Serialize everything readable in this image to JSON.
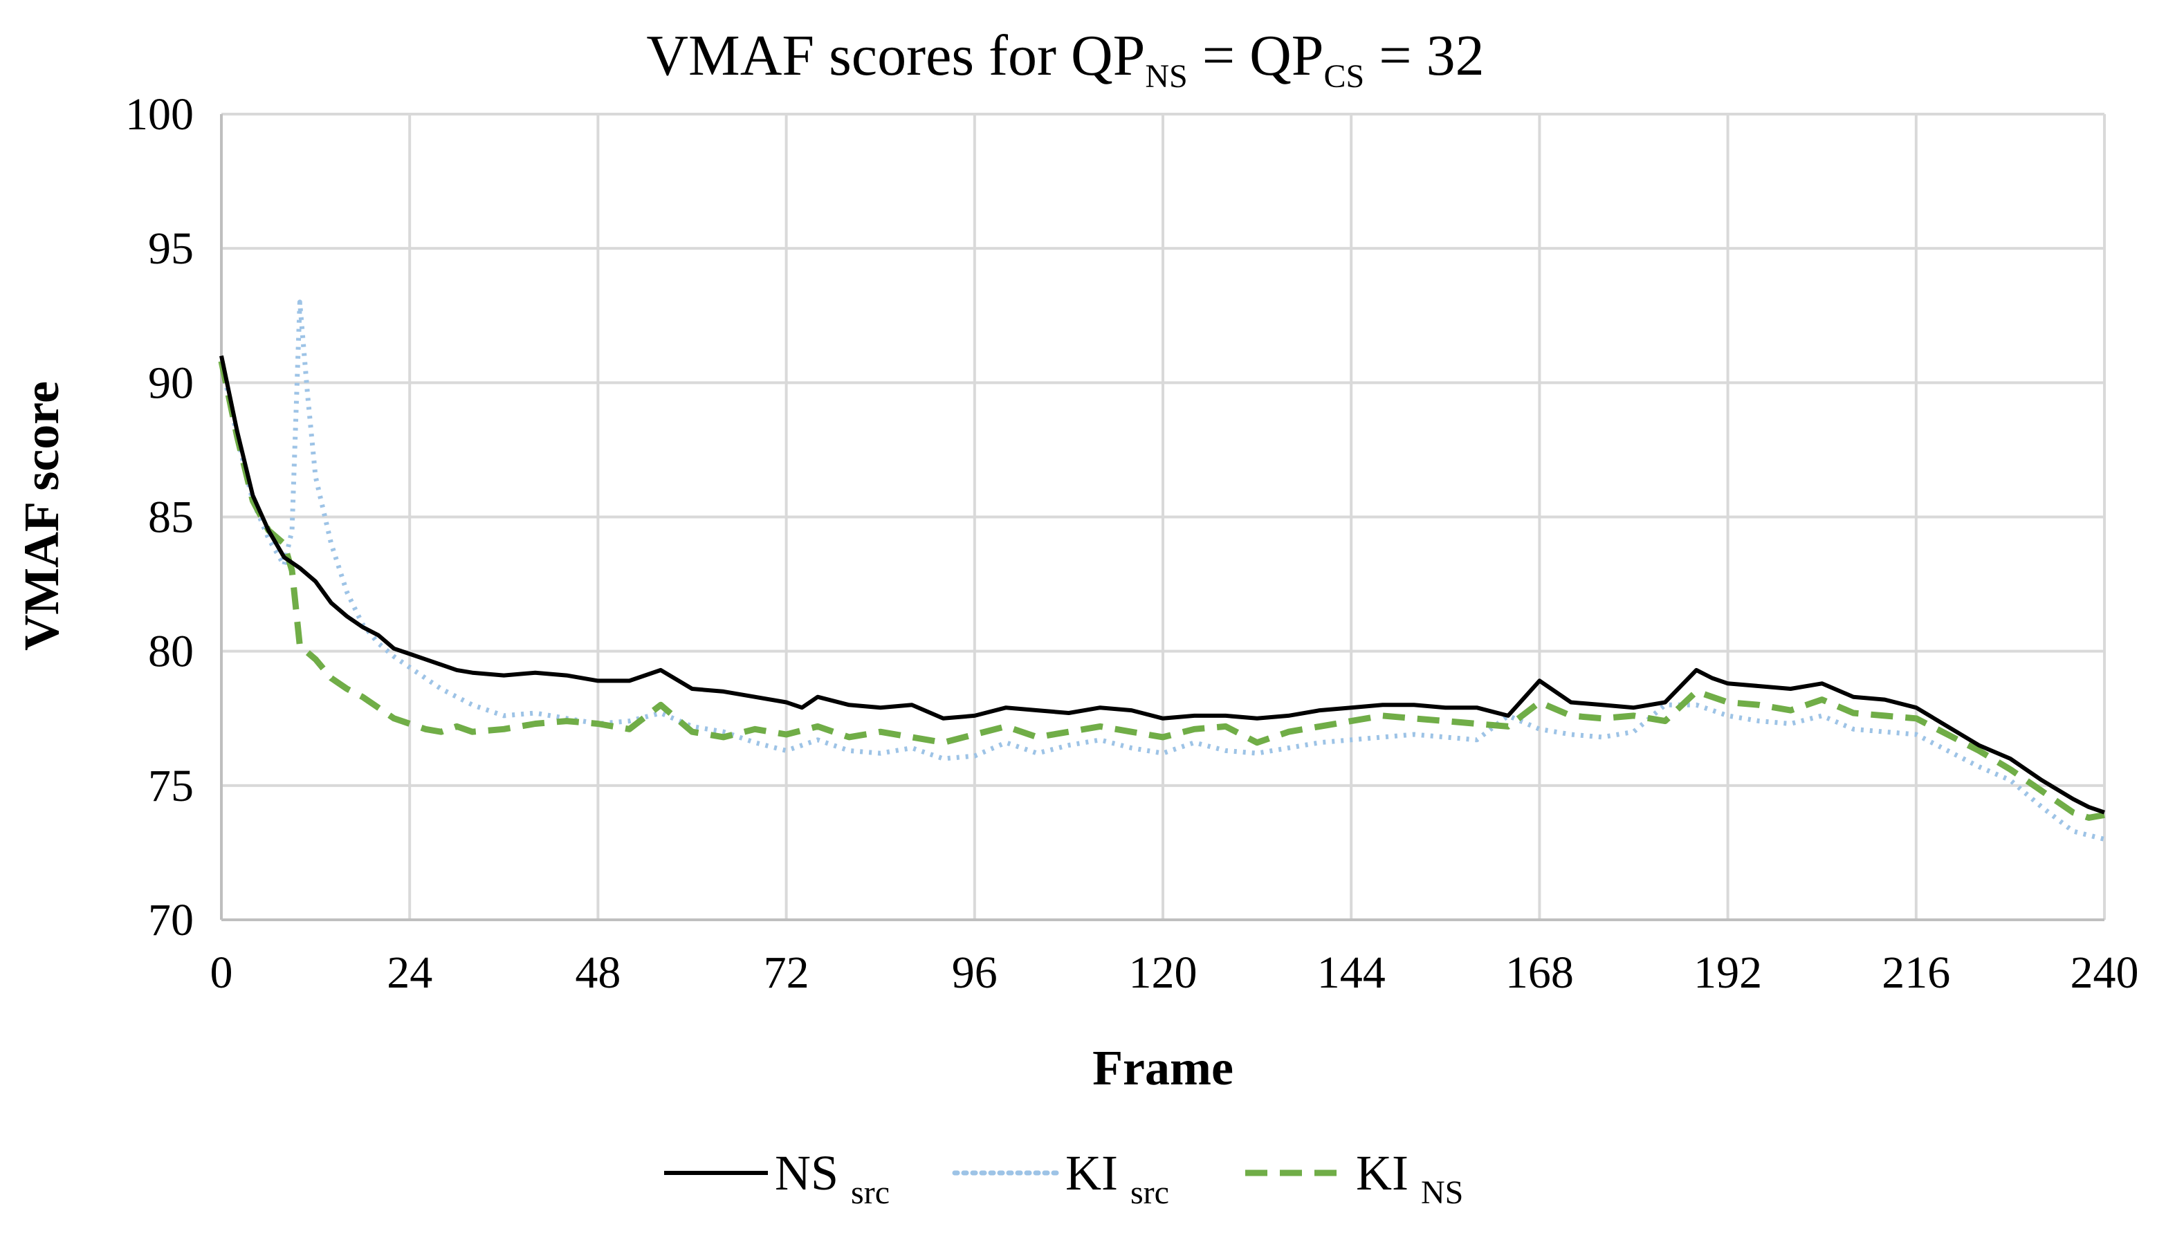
{
  "chart_data": {
    "type": "line",
    "title": {
      "prefix": "VMAF scores for QP",
      "sub1": "NS",
      "mid": " = QP",
      "sub2": "CS",
      "suffix": " = 32"
    },
    "xlabel": "Frame",
    "ylabel": "VMAF score",
    "xlim": [
      0,
      240
    ],
    "ylim": [
      70,
      100
    ],
    "xticks": [
      0,
      24,
      48,
      72,
      96,
      120,
      144,
      168,
      192,
      216,
      240
    ],
    "yticks": [
      70,
      75,
      80,
      85,
      90,
      95,
      100
    ],
    "grid": true,
    "legend_position": "bottom",
    "series": [
      {
        "name": "NS",
        "sub": "src",
        "color": "#000000",
        "style": "solid",
        "x": [
          0,
          2,
          4,
          6,
          8,
          10,
          12,
          14,
          16,
          18,
          20,
          22,
          24,
          26,
          28,
          30,
          32,
          36,
          40,
          44,
          48,
          52,
          56,
          60,
          64,
          68,
          72,
          74,
          76,
          80,
          84,
          88,
          92,
          96,
          100,
          104,
          108,
          112,
          116,
          120,
          124,
          128,
          132,
          136,
          140,
          144,
          148,
          152,
          156,
          160,
          164,
          168,
          172,
          176,
          180,
          184,
          188,
          190,
          192,
          196,
          200,
          204,
          208,
          212,
          216,
          220,
          224,
          228,
          232,
          236,
          238,
          240
        ],
        "values": [
          91,
          88.2,
          85.8,
          84.5,
          83.5,
          83.1,
          82.6,
          81.8,
          81.3,
          80.9,
          80.6,
          80.1,
          79.9,
          79.7,
          79.5,
          79.3,
          79.2,
          79.1,
          79.2,
          79.1,
          78.9,
          78.9,
          79.3,
          78.6,
          78.5,
          78.3,
          78.1,
          77.9,
          78.3,
          78.0,
          77.9,
          78.0,
          77.5,
          77.6,
          77.9,
          77.8,
          77.7,
          77.9,
          77.8,
          77.5,
          77.6,
          77.6,
          77.5,
          77.6,
          77.8,
          77.9,
          78.0,
          78.0,
          77.9,
          77.9,
          77.6,
          78.9,
          78.1,
          78.0,
          77.9,
          78.1,
          79.3,
          79.0,
          78.8,
          78.7,
          78.6,
          78.8,
          78.3,
          78.2,
          77.9,
          77.2,
          76.5,
          76.0,
          75.2,
          74.5,
          74.2,
          74.0
        ]
      },
      {
        "name": "KI",
        "sub": "src",
        "color": "#9dc3e6",
        "style": "dotted",
        "x": [
          0,
          2,
          4,
          6,
          8,
          9,
          10,
          11,
          12,
          14,
          16,
          18,
          20,
          22,
          24,
          26,
          28,
          30,
          32,
          36,
          40,
          44,
          48,
          52,
          56,
          60,
          64,
          68,
          72,
          76,
          80,
          84,
          88,
          92,
          96,
          100,
          104,
          108,
          112,
          116,
          120,
          124,
          128,
          132,
          136,
          140,
          144,
          148,
          152,
          156,
          160,
          164,
          168,
          172,
          176,
          180,
          184,
          188,
          192,
          196,
          200,
          204,
          208,
          212,
          216,
          220,
          224,
          228,
          232,
          236,
          240
        ],
        "values": [
          90.8,
          88.0,
          85.6,
          84.2,
          83.2,
          84.5,
          93.0,
          89.5,
          86.5,
          84.0,
          82.2,
          81.0,
          80.3,
          79.8,
          79.4,
          79.0,
          78.6,
          78.3,
          78.0,
          77.6,
          77.7,
          77.5,
          77.3,
          77.4,
          77.7,
          77.2,
          77.0,
          76.6,
          76.3,
          76.7,
          76.3,
          76.2,
          76.4,
          76.0,
          76.1,
          76.6,
          76.2,
          76.5,
          76.7,
          76.4,
          76.2,
          76.6,
          76.3,
          76.2,
          76.4,
          76.6,
          76.7,
          76.8,
          76.9,
          76.8,
          76.7,
          77.6,
          77.1,
          76.9,
          76.8,
          77.0,
          78.0,
          78.0,
          77.6,
          77.4,
          77.3,
          77.6,
          77.1,
          77.0,
          76.9,
          76.3,
          75.7,
          75.2,
          74.2,
          73.3,
          73.0
        ]
      },
      {
        "name": "KI",
        "sub": "NS",
        "color": "#70ad47",
        "style": "dashed",
        "x": [
          0,
          2,
          4,
          6,
          8,
          9,
          10,
          12,
          14,
          16,
          18,
          20,
          22,
          24,
          26,
          28,
          30,
          32,
          36,
          40,
          44,
          48,
          52,
          56,
          60,
          64,
          68,
          72,
          76,
          80,
          84,
          88,
          92,
          96,
          100,
          104,
          108,
          112,
          116,
          120,
          124,
          128,
          132,
          136,
          140,
          144,
          148,
          152,
          156,
          160,
          164,
          168,
          172,
          176,
          180,
          184,
          188,
          192,
          196,
          200,
          204,
          208,
          212,
          216,
          220,
          224,
          228,
          232,
          236,
          238,
          240
        ],
        "values": [
          90.8,
          88.0,
          85.6,
          84.5,
          84.0,
          83.0,
          80.2,
          79.7,
          79.0,
          78.6,
          78.3,
          77.9,
          77.5,
          77.3,
          77.1,
          77.0,
          77.2,
          77.0,
          77.1,
          77.3,
          77.4,
          77.3,
          77.1,
          78.0,
          77.0,
          76.8,
          77.1,
          76.9,
          77.2,
          76.8,
          77.0,
          76.8,
          76.6,
          76.9,
          77.2,
          76.8,
          77.0,
          77.2,
          77.0,
          76.8,
          77.1,
          77.2,
          76.6,
          77.0,
          77.2,
          77.4,
          77.6,
          77.5,
          77.4,
          77.3,
          77.2,
          78.1,
          77.6,
          77.5,
          77.6,
          77.4,
          78.5,
          78.1,
          78.0,
          77.8,
          78.2,
          77.7,
          77.6,
          77.5,
          76.9,
          76.3,
          75.6,
          74.8,
          74.0,
          73.8,
          73.9
        ]
      }
    ]
  }
}
